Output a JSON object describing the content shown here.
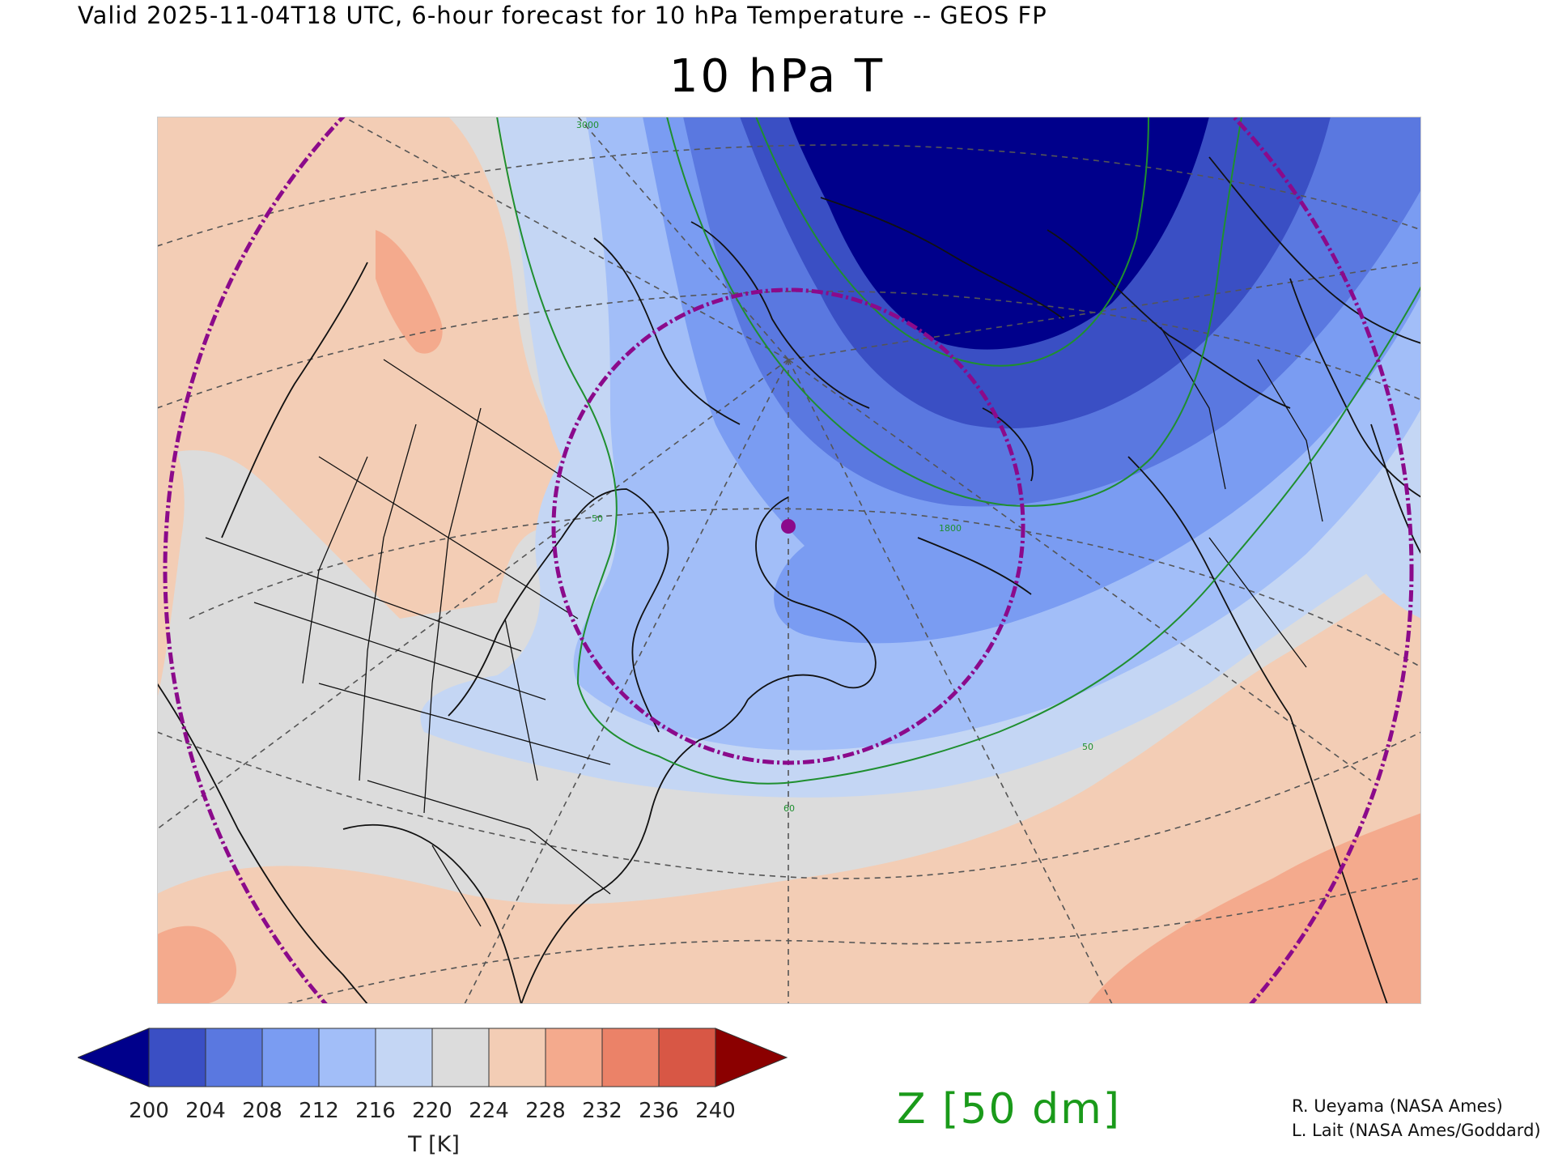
{
  "header": {
    "valid_line": "Valid 2025-11-04T18 UTC, 6-hour forecast for 10 hPa Temperature -- GEOS FP",
    "title": "10 hPa T"
  },
  "map": {
    "contour_labels": [
      "3000",
      "50",
      "1800",
      "60",
      "50"
    ],
    "colors": {
      "coast": "#111111",
      "graticule": "#555555",
      "geopotential": "#1f8f2f",
      "range_ring": "#8b0a8b",
      "marker": "#8b0a8b"
    }
  },
  "colorbar": {
    "ticks": [
      "200",
      "204",
      "208",
      "212",
      "216",
      "220",
      "224",
      "228",
      "232",
      "236",
      "240"
    ],
    "label": "T [K]",
    "colors": {
      "below": "#00008b",
      "bins": [
        "#3a4fc4",
        "#5a78e0",
        "#7a9cf2",
        "#a2bef8",
        "#c4d6f4",
        "#dcdcdc",
        "#f3cdb5",
        "#f4aa8d",
        "#eb8268",
        "#d85745"
      ],
      "above": "#8b0000"
    }
  },
  "overlay_label": "Z [50 dm]",
  "credits": [
    "R. Ueyama (NASA Ames)",
    "L. Lait (NASA Ames/Goddard)"
  ]
}
